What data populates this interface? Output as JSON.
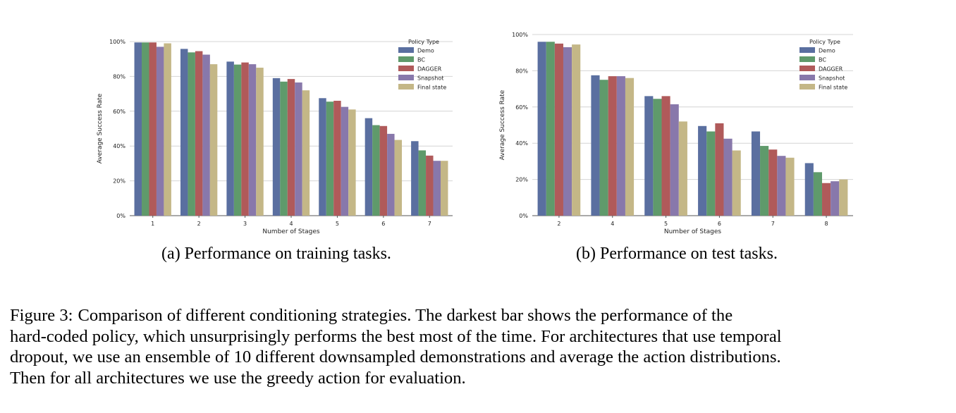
{
  "colors": {
    "Demo": "#5a6fa0",
    "BC": "#5f9a6b",
    "DAGGER": "#b05a5a",
    "Snapshot": "#8878ab",
    "Final state": "#c4b787",
    "grid": "#d4d4d4",
    "axis": "#555555"
  },
  "chart_data": [
    {
      "type": "bar",
      "categories": [
        "1",
        "2",
        "3",
        "4",
        "5",
        "6",
        "7"
      ],
      "series": [
        {
          "name": "Demo",
          "values": [
            99.5,
            95.8,
            88.5,
            79.0,
            67.5,
            56.0,
            42.8
          ]
        },
        {
          "name": "BC",
          "values": [
            99.5,
            93.8,
            86.8,
            77.0,
            65.5,
            52.0,
            37.5
          ]
        },
        {
          "name": "DAGGER",
          "values": [
            99.5,
            94.5,
            88.0,
            78.5,
            66.0,
            51.5,
            34.5
          ]
        },
        {
          "name": "Snapshot",
          "values": [
            97.0,
            92.5,
            87.0,
            76.5,
            62.5,
            47.0,
            31.5
          ]
        },
        {
          "name": "Final state",
          "values": [
            99.0,
            87.0,
            85.0,
            72.0,
            61.0,
            43.5,
            31.5
          ]
        }
      ],
      "xlabel": "Number of Stages",
      "ylabel": "Average Success Rate",
      "yticks": [
        "0%",
        "20%",
        "40%",
        "60%",
        "80%",
        "100%"
      ],
      "ylim": [
        0,
        100
      ],
      "legend_title": "Policy Type",
      "legend_position": "top-right",
      "grid": "horizontal"
    },
    {
      "type": "bar",
      "categories": [
        "2",
        "4",
        "5",
        "6",
        "7",
        "8"
      ],
      "series": [
        {
          "name": "Demo",
          "values": [
            96.0,
            77.5,
            66.0,
            49.5,
            46.5,
            29.0
          ]
        },
        {
          "name": "BC",
          "values": [
            96.0,
            75.0,
            64.5,
            46.5,
            38.5,
            24.0
          ]
        },
        {
          "name": "DAGGER",
          "values": [
            95.0,
            77.0,
            66.0,
            51.0,
            36.5,
            18.0
          ]
        },
        {
          "name": "Snapshot",
          "values": [
            93.0,
            77.0,
            61.5,
            42.5,
            33.0,
            19.0
          ]
        },
        {
          "name": "Final state",
          "values": [
            94.5,
            76.0,
            52.0,
            36.0,
            32.0,
            20.0
          ]
        }
      ],
      "xlabel": "Number of Stages",
      "ylabel": "Average Success Rate",
      "yticks": [
        "0%",
        "20%",
        "40%",
        "60%",
        "80%",
        "100%"
      ],
      "ylim": [
        0,
        100
      ],
      "legend_title": "Policy Type",
      "legend_position": "top-right",
      "grid": "horizontal"
    }
  ],
  "subcaptions": {
    "a": "(a)  Performance on training tasks.",
    "b": "(b)  Performance on test tasks."
  },
  "figure_caption": {
    "label": "Figure 3:",
    "lines": [
      "Comparison of different conditioning strategies.  The darkest bar shows the performance of the",
      "hard-coded policy, which unsurprisingly performs the best most of the time. For architectures that use temporal",
      "dropout, we use an ensemble of 10 different downsampled demonstrations and average the action distributions.",
      "Then for all architectures we use the greedy action for evaluation."
    ]
  }
}
